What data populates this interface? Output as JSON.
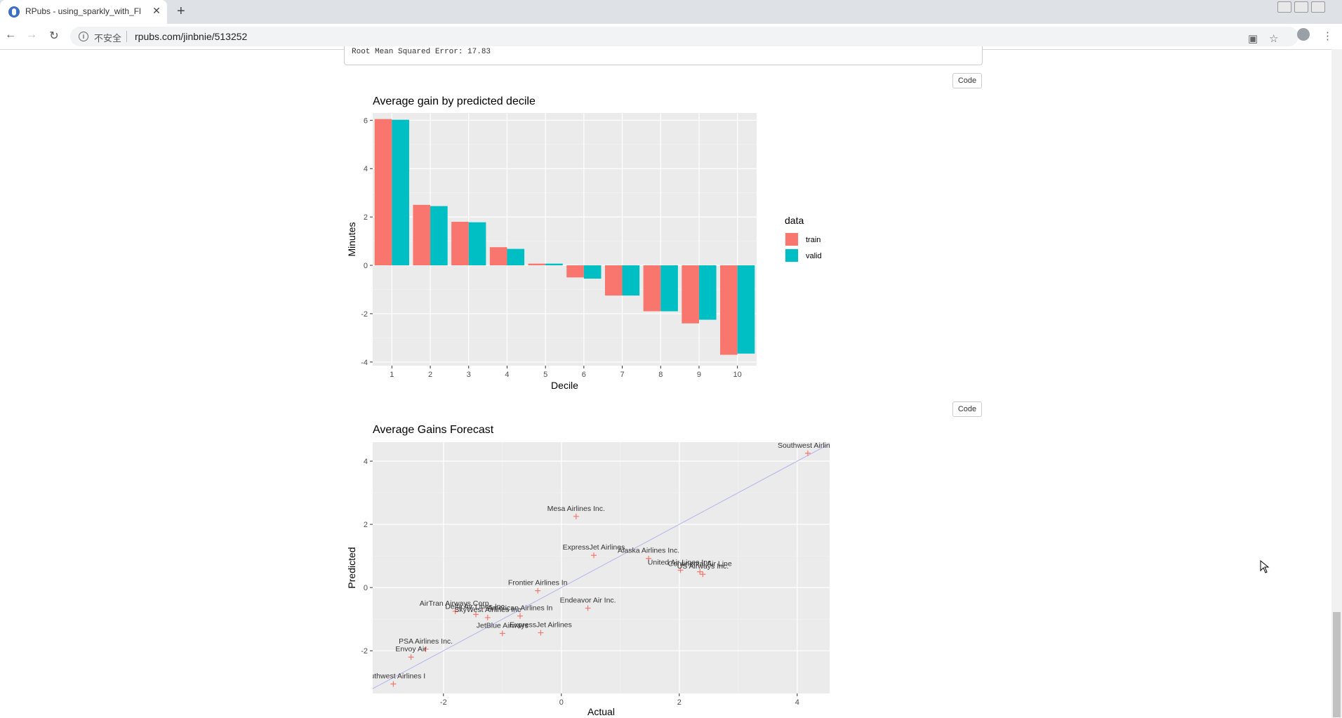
{
  "browser": {
    "tab_title": "RPubs - using_sparkly_with_Fl",
    "tab_close": "✕",
    "new_tab": "+",
    "insecure_label": "不安全",
    "url": "rpubs.com/jinbnie/513252"
  },
  "page": {
    "console_output": "Root Mean Squared Error: 17.83",
    "code_button_1": "Code",
    "code_button_2": "Code"
  },
  "chart_data": [
    {
      "type": "bar",
      "title": "Average gain by predicted decile",
      "xlabel": "Decile",
      "ylabel": "Minutes",
      "categories": [
        "1",
        "2",
        "3",
        "4",
        "5",
        "6",
        "7",
        "8",
        "9",
        "10"
      ],
      "series": [
        {
          "name": "train",
          "values": [
            6.05,
            2.5,
            1.8,
            0.75,
            0.07,
            -0.5,
            -1.25,
            -1.9,
            -2.4,
            -3.7
          ],
          "color": "#F8766D"
        },
        {
          "name": "valid",
          "values": [
            6.02,
            2.45,
            1.78,
            0.68,
            0.07,
            -0.55,
            -1.25,
            -1.9,
            -2.25,
            -3.65
          ],
          "color": "#00BFC4"
        }
      ],
      "ylim": [
        -4.15,
        6.3
      ],
      "yticks": [
        -4,
        -2,
        0,
        2,
        4,
        6
      ],
      "grid": true,
      "legend": {
        "title": "data",
        "placement": "right"
      }
    },
    {
      "type": "scatter",
      "title": "Average Gains Forecast",
      "xlabel": "Actual",
      "ylabel": "Predicted",
      "xlim": [
        -3.2,
        4.55
      ],
      "ylim": [
        -3.35,
        4.6
      ],
      "xticks": [
        -2,
        0,
        2,
        4
      ],
      "yticks": [
        -2,
        0,
        2,
        4
      ],
      "grid": true,
      "point_color": "#F8766D",
      "line_color": "#b3b3ee",
      "reference_line": [
        [
          -3.2,
          -3.2
        ],
        [
          4.55,
          4.55
        ]
      ],
      "points": [
        {
          "label": "Southwest Airlines",
          "x": 4.18,
          "y": 4.25
        },
        {
          "label": "Mesa Airlines Inc.",
          "x": 0.25,
          "y": 2.25
        },
        {
          "label": "ExpressJet Airlines",
          "x": 0.55,
          "y": 1.02
        },
        {
          "label": "Alaska Airlines Inc.",
          "x": 1.48,
          "y": 0.92
        },
        {
          "label": "United Air Lines Inc.",
          "x": 2.02,
          "y": 0.55
        },
        {
          "label": "Continental Air Line",
          "x": 2.35,
          "y": 0.5
        },
        {
          "label": "US Airways Inc.",
          "x": 2.4,
          "y": 0.42
        },
        {
          "label": "Frontier Airlines In",
          "x": -0.4,
          "y": -0.1
        },
        {
          "label": "Endeavor Air Inc.",
          "x": 0.45,
          "y": -0.65
        },
        {
          "label": "AirTran Airways Corp.",
          "x": -1.8,
          "y": -0.75
        },
        {
          "label": "American Airlines In",
          "x": -0.7,
          "y": -0.9
        },
        {
          "label": "Delta Air Lines Inc.",
          "x": -1.45,
          "y": -0.85
        },
        {
          "label": "SkyWest Airlines Inc",
          "x": -1.25,
          "y": -0.95
        },
        {
          "label": "JetBlue Airways",
          "x": -1.0,
          "y": -1.45
        },
        {
          "label": "ExpressJet Airlines",
          "x": -0.35,
          "y": -1.43
        },
        {
          "label": "PSA Airlines Inc.",
          "x": -2.3,
          "y": -1.95
        },
        {
          "label": "Envoy Air",
          "x": -2.55,
          "y": -2.2
        },
        {
          "label": "Southwest Airlines I",
          "x": -2.85,
          "y": -3.05
        }
      ]
    }
  ]
}
